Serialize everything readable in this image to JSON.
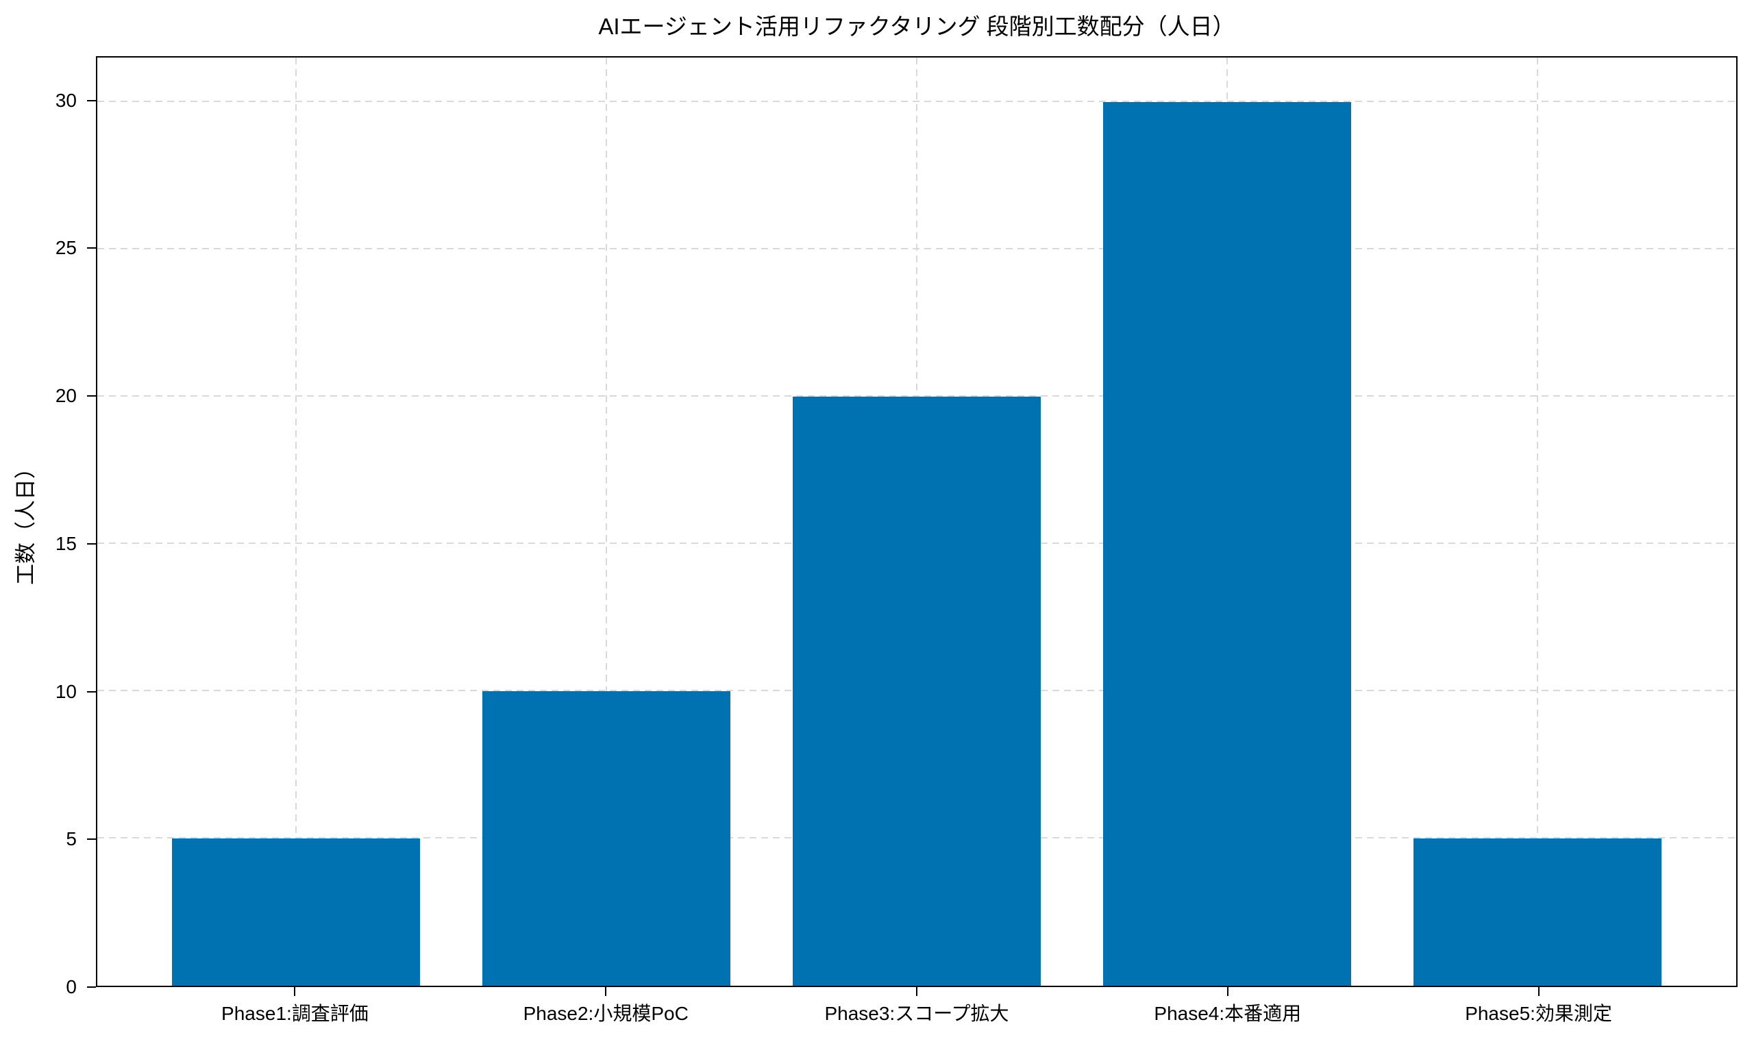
{
  "chart_data": {
    "type": "bar",
    "title": "AIエージェント活用リファクタリング 段階別工数配分（人日）",
    "ylabel": "工数（人日）",
    "xlabel": "",
    "categories": [
      "Phase1:調査評価",
      "Phase2:小規模PoC",
      "Phase3:スコープ拡大",
      "Phase4:本番適用",
      "Phase5:効果測定"
    ],
    "values": [
      5,
      10,
      20,
      30,
      5
    ],
    "yticks": [
      0,
      5,
      10,
      15,
      20,
      25,
      30
    ],
    "ylim": [
      0,
      31.5
    ],
    "bar_width": 0.8,
    "bar_color": "#0072b2",
    "grid": {
      "visible": true,
      "style": "dashed",
      "color": "#d9d9d9",
      "axes": "both"
    },
    "legend": "none",
    "background": "#ffffff"
  }
}
